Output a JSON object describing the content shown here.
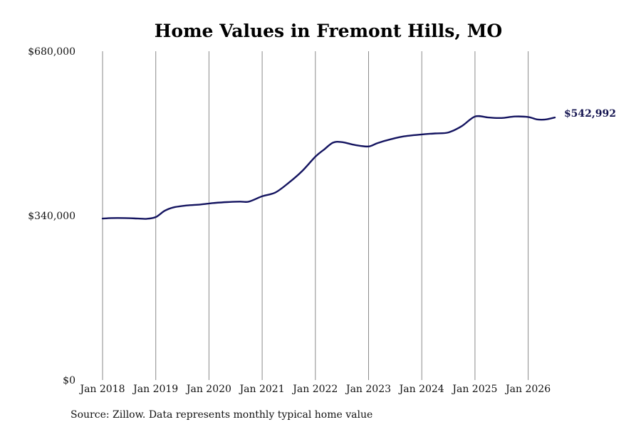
{
  "chart_data": {
    "type": "line",
    "title": "Home Values in Fremont Hills, MO",
    "source": "Source: Zillow. Data represents monthly typical home value",
    "ylim": [
      0,
      680000
    ],
    "y_ticks": [
      {
        "value": 680000,
        "label": "$680,000"
      },
      {
        "value": 340000,
        "label": "$340,000"
      },
      {
        "value": 0,
        "label": "$0"
      }
    ],
    "x_ticks": [
      {
        "date": "2018-01",
        "label": "Jan 2018"
      },
      {
        "date": "2019-01",
        "label": "Jan 2019"
      },
      {
        "date": "2020-01",
        "label": "Jan 2020"
      },
      {
        "date": "2021-01",
        "label": "Jan 2021"
      },
      {
        "date": "2022-01",
        "label": "Jan 2022"
      },
      {
        "date": "2023-01",
        "label": "Jan 2023"
      },
      {
        "date": "2024-01",
        "label": "Jan 2024"
      },
      {
        "date": "2025-01",
        "label": "Jan 2025"
      },
      {
        "date": "2026-01",
        "label": "Jan 2026"
      }
    ],
    "grid": "vertical",
    "color": "#141460",
    "end_label": "$542,992",
    "series": [
      {
        "points": [
          [
            "2018-01",
            334000
          ],
          [
            "2018-03",
            335000
          ],
          [
            "2018-06",
            335000
          ],
          [
            "2018-09",
            334000
          ],
          [
            "2018-11",
            333500
          ],
          [
            "2019-01",
            337000
          ],
          [
            "2019-03",
            350000
          ],
          [
            "2019-05",
            357000
          ],
          [
            "2019-08",
            361000
          ],
          [
            "2019-11",
            363000
          ],
          [
            "2020-02",
            366000
          ],
          [
            "2020-05",
            368000
          ],
          [
            "2020-08",
            369000
          ],
          [
            "2020-10",
            369000
          ],
          [
            "2021-01",
            380000
          ],
          [
            "2021-04",
            388000
          ],
          [
            "2021-07",
            408000
          ],
          [
            "2021-10",
            432000
          ],
          [
            "2022-01",
            462000
          ],
          [
            "2022-03",
            477000
          ],
          [
            "2022-05",
            491000
          ],
          [
            "2022-07",
            492000
          ],
          [
            "2022-10",
            486000
          ],
          [
            "2023-01",
            483000
          ],
          [
            "2023-03",
            490000
          ],
          [
            "2023-06",
            498000
          ],
          [
            "2023-09",
            504000
          ],
          [
            "2024-01",
            508000
          ],
          [
            "2024-04",
            510000
          ],
          [
            "2024-07",
            512000
          ],
          [
            "2024-10",
            525000
          ],
          [
            "2025-01",
            545000
          ],
          [
            "2025-04",
            543000
          ],
          [
            "2025-07",
            542000
          ],
          [
            "2025-10",
            545000
          ],
          [
            "2026-01",
            544000
          ],
          [
            "2026-03",
            539000
          ],
          [
            "2026-05",
            539000
          ],
          [
            "2026-07",
            542992
          ]
        ]
      }
    ]
  }
}
